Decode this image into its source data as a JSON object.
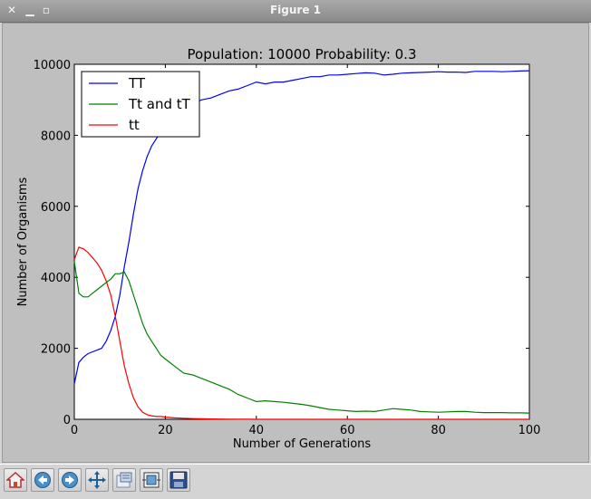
{
  "window": {
    "title": "Figure 1",
    "close_icon": "close-icon",
    "minimize_icon": "minimize-icon",
    "maximize_icon": "maximize-icon"
  },
  "toolbar": {
    "items": [
      {
        "name": "home-button",
        "icon": "home-icon"
      },
      {
        "name": "back-button",
        "icon": "arrow-left-icon"
      },
      {
        "name": "forward-button",
        "icon": "arrow-right-icon"
      },
      {
        "name": "pan-button",
        "icon": "move-icon"
      },
      {
        "name": "zoom-button",
        "icon": "zoom-rect-icon"
      },
      {
        "name": "subplots-button",
        "icon": "subplots-icon"
      },
      {
        "name": "save-button",
        "icon": "save-icon"
      }
    ]
  },
  "chart_data": {
    "type": "line",
    "title": "Population: 10000 Probability: 0.3",
    "xlabel": "Number of Generations",
    "ylabel": "Number of Organisms",
    "xlim": [
      0,
      100
    ],
    "ylim": [
      0,
      10000
    ],
    "xticks": [
      0,
      20,
      40,
      60,
      80,
      100
    ],
    "yticks": [
      0,
      2000,
      4000,
      6000,
      8000,
      10000
    ],
    "xtick_labels": [
      "0",
      "20",
      "40",
      "60",
      "80",
      "100"
    ],
    "ytick_labels": [
      "0",
      "2000",
      "4000",
      "6000",
      "8000",
      "10000"
    ],
    "grid": false,
    "legend": "top-left",
    "series": [
      {
        "name": "TT",
        "color": "#0000ff",
        "x": [
          0,
          1,
          2,
          3,
          4,
          5,
          6,
          7,
          8,
          9,
          10,
          11,
          12,
          13,
          14,
          15,
          16,
          17,
          18,
          19,
          20,
          22,
          24,
          26,
          28,
          30,
          32,
          34,
          36,
          38,
          40,
          42,
          44,
          46,
          48,
          50,
          52,
          54,
          56,
          58,
          60,
          62,
          64,
          66,
          68,
          70,
          72,
          74,
          76,
          78,
          80,
          82,
          84,
          86,
          88,
          90,
          92,
          94,
          96,
          98,
          100
        ],
        "y": [
          1000,
          1600,
          1750,
          1850,
          1900,
          1950,
          2000,
          2200,
          2500,
          2900,
          3500,
          4300,
          5000,
          5800,
          6500,
          7000,
          7400,
          7700,
          7900,
          8100,
          8300,
          8650,
          8800,
          8900,
          9000,
          9050,
          9150,
          9250,
          9300,
          9400,
          9500,
          9450,
          9500,
          9500,
          9550,
          9600,
          9650,
          9650,
          9700,
          9700,
          9720,
          9740,
          9760,
          9750,
          9700,
          9720,
          9750,
          9760,
          9770,
          9780,
          9790,
          9780,
          9780,
          9770,
          9800,
          9800,
          9800,
          9790,
          9800,
          9810,
          9820
        ]
      },
      {
        "name": "Tt and tT",
        "color": "#008000",
        "x": [
          0,
          1,
          2,
          3,
          4,
          5,
          6,
          7,
          8,
          9,
          10,
          11,
          12,
          13,
          14,
          15,
          16,
          17,
          18,
          19,
          20,
          22,
          24,
          26,
          28,
          30,
          32,
          34,
          36,
          38,
          40,
          42,
          44,
          46,
          48,
          50,
          52,
          54,
          56,
          58,
          60,
          62,
          64,
          66,
          68,
          70,
          72,
          74,
          76,
          78,
          80,
          82,
          84,
          86,
          88,
          90,
          92,
          94,
          96,
          98,
          100
        ],
        "y": [
          4450,
          3550,
          3450,
          3450,
          3550,
          3650,
          3750,
          3850,
          3950,
          4100,
          4100,
          4150,
          3900,
          3500,
          3100,
          2700,
          2400,
          2200,
          2000,
          1800,
          1700,
          1500,
          1300,
          1250,
          1150,
          1050,
          950,
          850,
          700,
          600,
          500,
          520,
          500,
          480,
          450,
          420,
          380,
          330,
          280,
          260,
          240,
          220,
          230,
          220,
          260,
          300,
          280,
          260,
          220,
          210,
          200,
          210,
          220,
          220,
          200,
          190,
          190,
          190,
          180,
          180,
          175
        ]
      },
      {
        "name": "tt",
        "color": "#ff0000",
        "x": [
          0,
          1,
          2,
          3,
          4,
          5,
          6,
          7,
          8,
          9,
          10,
          11,
          12,
          13,
          14,
          15,
          16,
          17,
          18,
          19,
          20,
          22,
          24,
          26,
          28,
          30,
          32,
          34,
          36,
          38,
          40,
          42,
          44,
          46,
          48,
          50,
          52,
          54,
          56,
          58,
          60,
          62,
          64,
          66,
          68,
          70,
          72,
          74,
          76,
          78,
          80,
          82,
          84,
          86,
          88,
          90,
          92,
          94,
          96,
          98,
          100
        ],
        "y": [
          4500,
          4850,
          4800,
          4700,
          4550,
          4400,
          4200,
          3900,
          3500,
          2900,
          2200,
          1500,
          1000,
          600,
          350,
          200,
          130,
          100,
          80,
          80,
          60,
          40,
          30,
          20,
          15,
          10,
          8,
          5,
          3,
          2,
          1,
          1,
          1,
          0,
          0,
          0,
          0,
          0,
          0,
          0,
          0,
          0,
          0,
          0,
          0,
          0,
          0,
          0,
          0,
          0,
          0,
          0,
          0,
          0,
          0,
          0,
          0,
          0,
          0,
          0,
          0
        ]
      }
    ]
  }
}
